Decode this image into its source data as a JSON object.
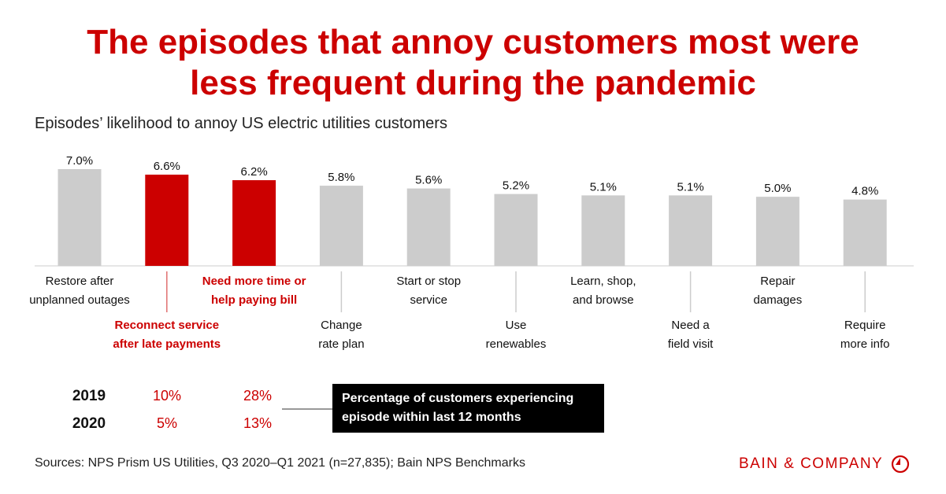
{
  "title_line1": "The episodes that annoy customers most were",
  "title_line2": "less frequent during the pandemic",
  "subtitle": "Episodes’ likelihood to annoy US electric utilities customers",
  "colors": {
    "highlight": "#cc0000",
    "default": "#cccccc"
  },
  "chart_data": {
    "type": "bar",
    "categories": [
      [
        "Restore after",
        "unplanned outages"
      ],
      [
        "Reconnect service",
        "after late payments"
      ],
      [
        "Need more time or",
        "help paying bill"
      ],
      [
        "Change",
        "rate plan"
      ],
      [
        "Start or stop",
        "service"
      ],
      [
        "Use",
        "renewables"
      ],
      [
        "Learn, shop,",
        "and browse"
      ],
      [
        "Need a",
        "field visit"
      ],
      [
        "Repair",
        "damages"
      ],
      [
        "Require",
        "more info"
      ]
    ],
    "values": [
      7.0,
      6.6,
      6.2,
      5.8,
      5.6,
      5.2,
      5.1,
      5.1,
      5.0,
      4.8
    ],
    "labels": [
      "7.0%",
      "6.6%",
      "6.2%",
      "5.8%",
      "5.6%",
      "5.2%",
      "5.1%",
      "5.1%",
      "5.0%",
      "4.8%"
    ],
    "highlighted": [
      false,
      true,
      true,
      false,
      false,
      false,
      false,
      false,
      false,
      false
    ],
    "ylim": [
      0,
      7.0
    ]
  },
  "table": {
    "rows": [
      {
        "year": "2019",
        "reconnect": "10%",
        "more_time": "28%"
      },
      {
        "year": "2020",
        "reconnect": "5%",
        "more_time": "13%"
      }
    ],
    "note": "Percentage of customers experiencing episode within last 12 months"
  },
  "sources": "Sources: NPS Prism US Utilities, Q3 2020–Q1 2021 (n=27,835); Bain NPS Benchmarks",
  "logo": "BAIN & COMPANY"
}
